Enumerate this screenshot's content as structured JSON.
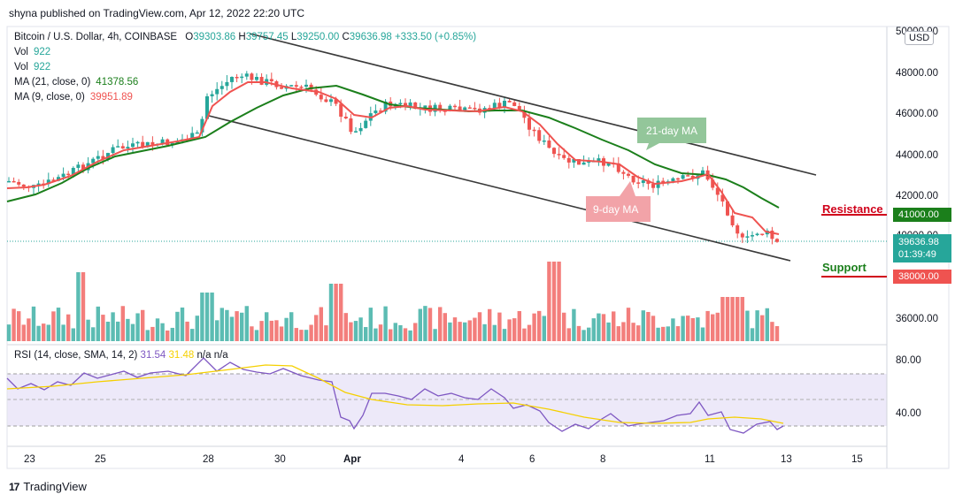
{
  "header": {
    "text": "shyna published on TradingView.com, Apr 12, 2022 22:20 UTC"
  },
  "legend": {
    "symbol": "Bitcoin / U.S. Dollar, 4h, COINBASE",
    "o_label": "O",
    "o": "39303.86",
    "h_label": "H",
    "h": "39757.45",
    "l_label": "L",
    "l": "39250.00",
    "c_label": "C",
    "c": "39636.98",
    "change": "+333.50 (+0.85%)",
    "vol1_label": "Vol",
    "vol1": "922",
    "vol2_label": "Vol",
    "vol2": "922",
    "ma21_label": "MA (21, close, 0)",
    "ma21": "41378.56",
    "ma9_label": "MA (9, close, 0)",
    "ma9": "39951.89"
  },
  "rsi_legend": {
    "label": "RSI (14, close, SMA, 14, 2)",
    "v1": "31.54",
    "v2": "31.48",
    "v3": "n/a",
    "v4": "n/a"
  },
  "price_axis": {
    "currency": "USD",
    "ticks": [
      "50000.00",
      "48000.00",
      "46000.00",
      "44000.00",
      "42000.00",
      "40000.00",
      "36000.00"
    ],
    "current_price": "39636.98",
    "countdown": "01:39:49",
    "resistance_price": "41000.00",
    "support_price": "38000.00"
  },
  "rsi_axis": {
    "ticks": [
      "80.00",
      "40.00"
    ]
  },
  "time_axis": {
    "ticks": [
      "23",
      "25",
      "28",
      "30",
      "Apr",
      "4",
      "6",
      "8",
      "11",
      "13",
      "15"
    ]
  },
  "annotations": {
    "ma21": "21-day MA",
    "ma9": "9-day MA",
    "resistance": "Resistance",
    "support": "Support"
  },
  "footer": {
    "brand": "TradingView",
    "logo": "17"
  },
  "colors": {
    "up": "#26a69a",
    "down": "#ef5350",
    "ma21": "#1b7f1b",
    "ma9": "#ef5350",
    "rsi": "#7e57c2",
    "rsi_sma": "#f5d000",
    "channel": "#3a3a3a",
    "resistance": "#d0021b",
    "support": "#1b7f1b"
  }
}
